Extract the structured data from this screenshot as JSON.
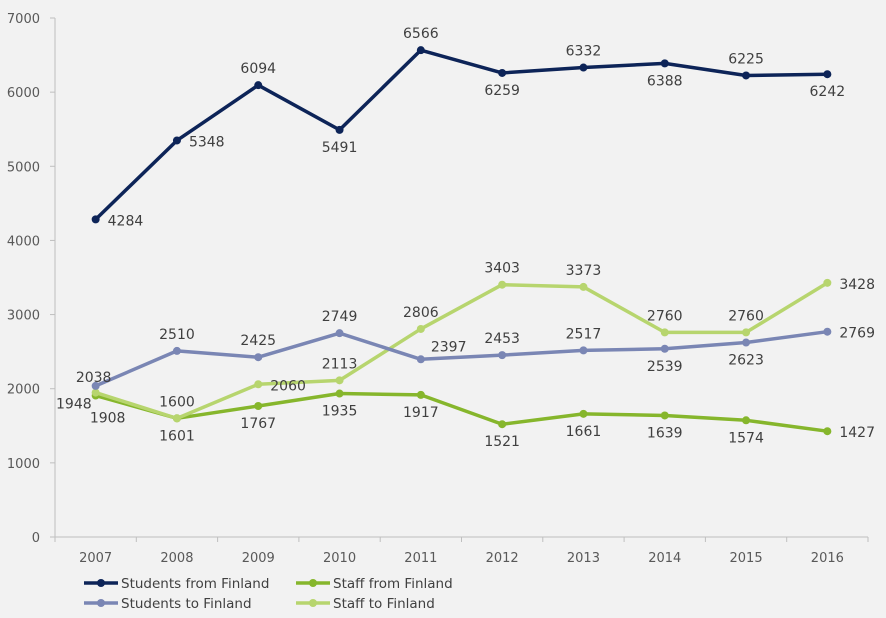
{
  "chart_data": {
    "type": "line",
    "title": "",
    "xlabel": "",
    "ylabel": "",
    "categories": [
      "2007",
      "2008",
      "2009",
      "2010",
      "2011",
      "2012",
      "2013",
      "2014",
      "2015",
      "2016"
    ],
    "ylim": [
      0,
      7000
    ],
    "yticks": [
      0,
      1000,
      2000,
      3000,
      4000,
      5000,
      6000,
      7000
    ],
    "grid": false,
    "legend": "bottom",
    "series": [
      {
        "name": "Students from Finland",
        "color": "#0d2458",
        "values": [
          4284,
          5348,
          6094,
          5491,
          6566,
          6259,
          6332,
          6388,
          6225,
          6242
        ]
      },
      {
        "name": "Students to Finland",
        "color": "#7a86b4",
        "values": [
          2038,
          2510,
          2425,
          2749,
          2397,
          2453,
          2517,
          2539,
          2623,
          2769
        ]
      },
      {
        "name": "Staff from Finland",
        "color": "#86b62c",
        "values": [
          1908,
          1601,
          1767,
          1935,
          1917,
          1521,
          1661,
          1639,
          1574,
          1427
        ]
      },
      {
        "name": "Staff to Finland",
        "color": "#b7d56e",
        "values": [
          1948,
          1600,
          2060,
          2113,
          2806,
          3403,
          3373,
          2760,
          2760,
          3428
        ]
      }
    ]
  }
}
